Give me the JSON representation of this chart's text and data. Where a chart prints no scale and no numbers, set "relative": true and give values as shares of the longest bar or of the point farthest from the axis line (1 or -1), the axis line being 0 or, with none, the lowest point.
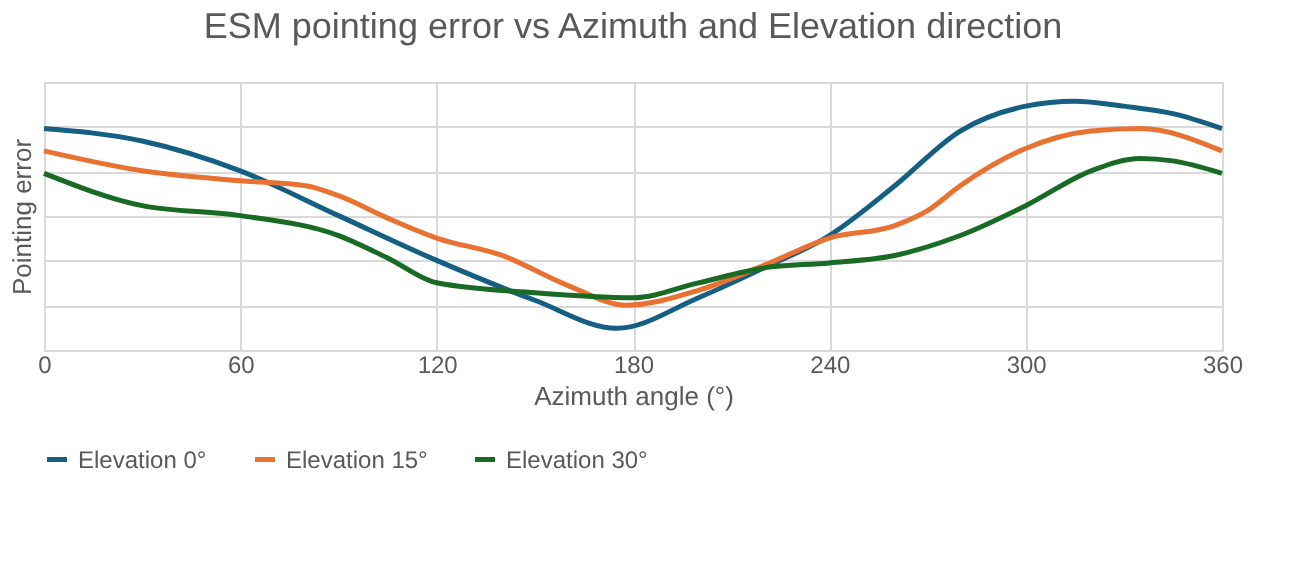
{
  "chart_data": {
    "type": "line",
    "title": "ESM pointing error vs Azimuth and Elevation direction",
    "xlabel": "Azimuth angle (°)",
    "ylabel": "Pointing error",
    "relative": true,
    "xlim": [
      0,
      360
    ],
    "xticks": [
      0,
      60,
      120,
      180,
      240,
      300,
      360
    ],
    "grid": true,
    "legend": "bottom",
    "marker": "none",
    "line_style": "solid",
    "series": [
      {
        "name": "Elevation 0°",
        "color": "#156082",
        "x": [
          0,
          30,
          60,
          90,
          120,
          150,
          175,
          200,
          220,
          240,
          260,
          280,
          300,
          315,
          330,
          345,
          360
        ],
        "values": [
          0.89,
          0.84,
          0.72,
          0.54,
          0.36,
          0.2,
          0.087,
          0.21,
          0.33,
          0.46,
          0.66,
          0.88,
          0.98,
          1,
          0.98,
          0.95,
          0.89
        ]
      },
      {
        "name": "Elevation 15°",
        "color": "#e97132",
        "x": [
          0,
          30,
          60,
          80,
          90,
          105,
          120,
          140,
          160,
          178,
          200,
          220,
          240,
          260,
          270,
          280,
          300,
          320,
          335,
          360
        ],
        "values": [
          0.8,
          0.72,
          0.68,
          0.66,
          0.62,
          0.53,
          0.45,
          0.38,
          0.26,
          0.18,
          0.24,
          0.34,
          0.45,
          0.5,
          0.56,
          0.66,
          0.81,
          0.88,
          0.89,
          0.8
        ]
      },
      {
        "name": "Elevation 30°",
        "color": "#196b24",
        "x": [
          0,
          30,
          60,
          90,
          105,
          120,
          150,
          180,
          200,
          220,
          240,
          260,
          280,
          300,
          320,
          335,
          345,
          360
        ],
        "values": [
          0.71,
          0.58,
          0.54,
          0.46,
          0.37,
          0.27,
          0.23,
          0.21,
          0.27,
          0.33,
          0.35,
          0.38,
          0.46,
          0.58,
          0.72,
          0.77,
          0.76,
          0.71
        ]
      }
    ]
  }
}
